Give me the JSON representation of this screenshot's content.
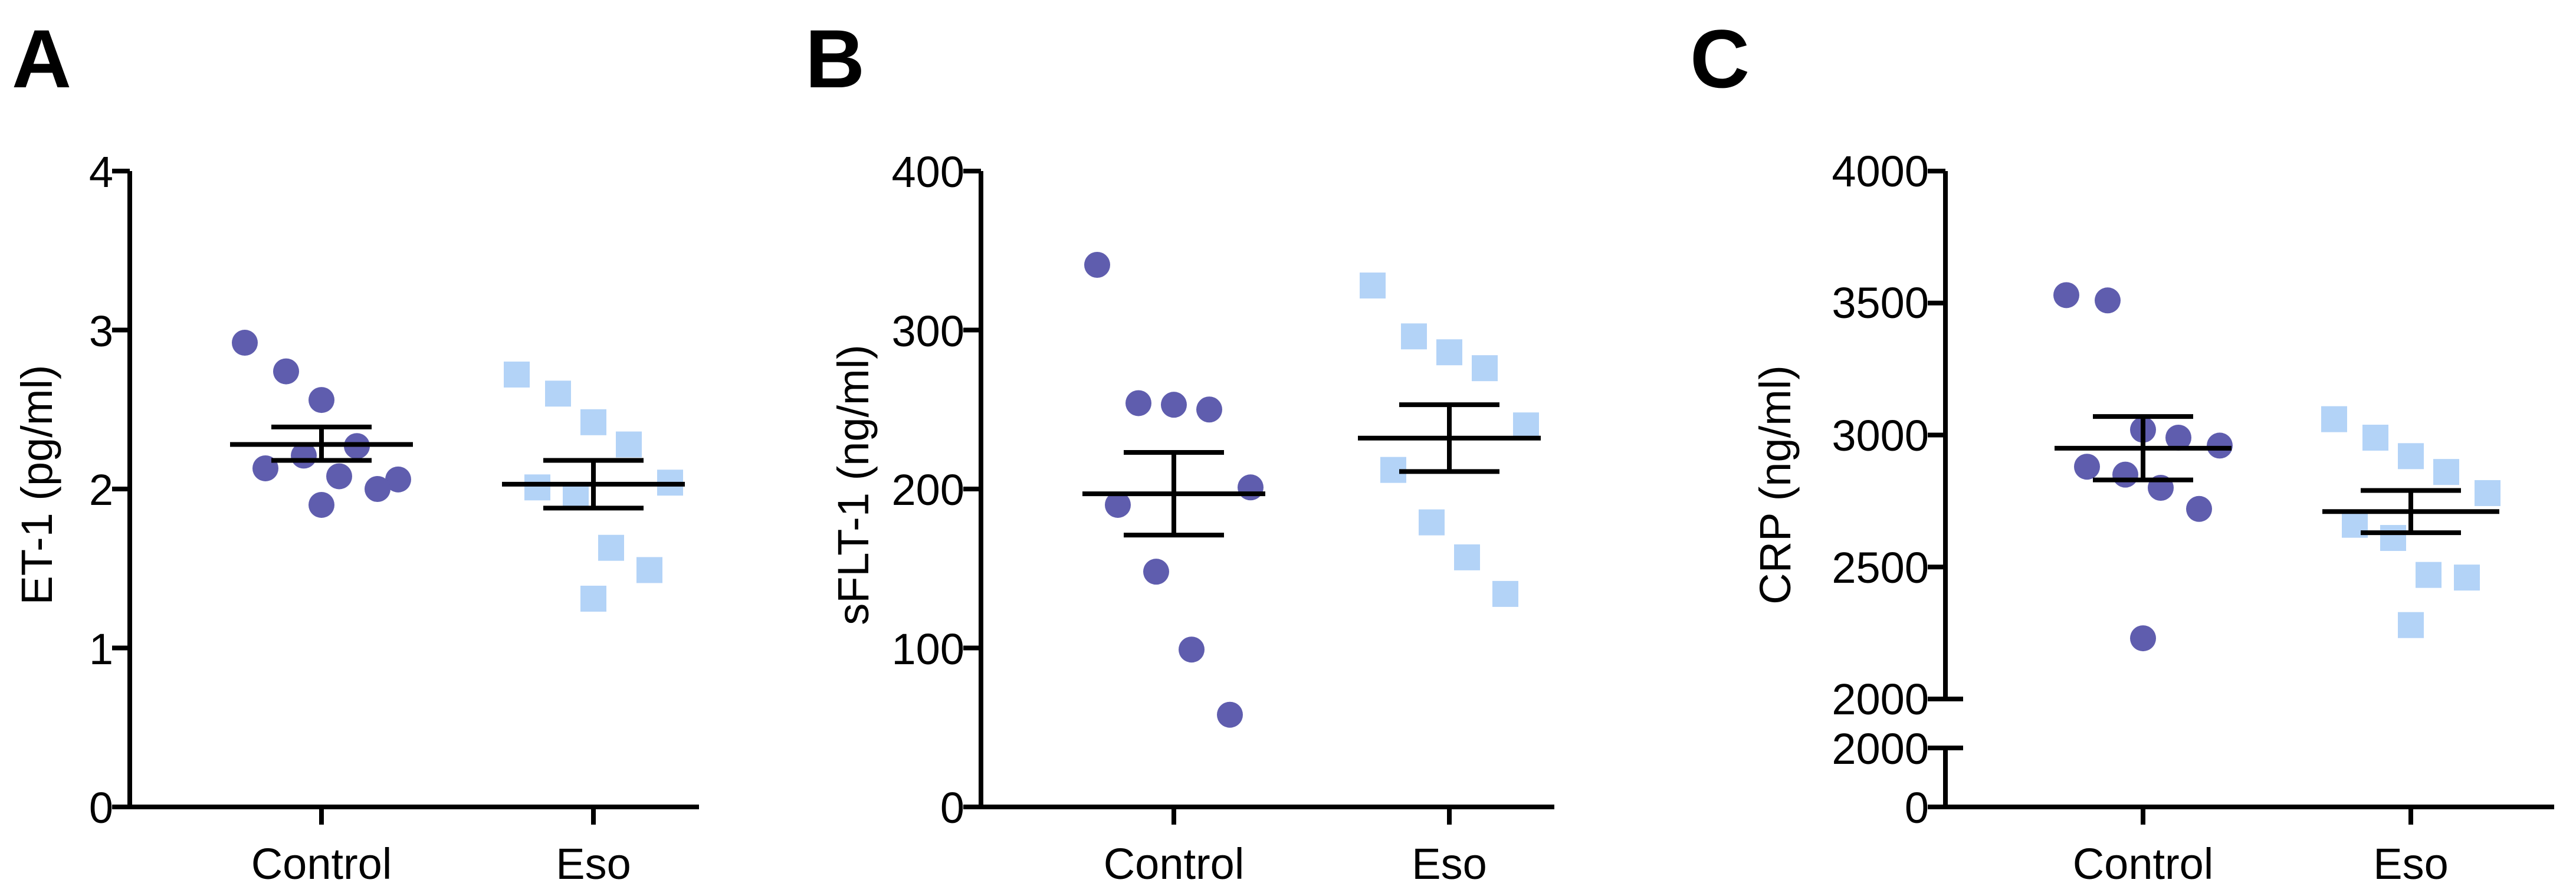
{
  "panels": [
    {
      "letter": "A"
    },
    {
      "letter": "B"
    },
    {
      "letter": "C"
    }
  ],
  "chart_data": [
    {
      "type": "scatter",
      "panel": "A",
      "ylabel": "ET-1 (pg/ml)",
      "xlabel": "",
      "categories": [
        "Control",
        "Eso"
      ],
      "ylim": [
        0,
        4
      ],
      "yticks": [
        "0",
        "1",
        "2",
        "3",
        "4"
      ],
      "series": [
        {
          "category": "Control",
          "marker": "circle",
          "color": "#5F5DAE",
          "values": [
            2.92,
            2.74,
            2.56,
            2.27,
            2.06,
            2.13,
            2.21,
            2.08,
            2.0,
            1.9
          ],
          "mean": 2.28,
          "sem": [
            2.18,
            2.39
          ]
        },
        {
          "category": "Eso",
          "marker": "square",
          "color": "#B3D3F7",
          "values": [
            2.72,
            2.6,
            2.42,
            2.28,
            2.04,
            2.01,
            1.95,
            1.63,
            1.49,
            1.31
          ],
          "mean": 2.03,
          "sem": [
            1.88,
            2.18
          ]
        }
      ]
    },
    {
      "type": "scatter",
      "panel": "B",
      "ylabel": "sFLT-1 (ng/ml)",
      "xlabel": "",
      "categories": [
        "Control",
        "Eso"
      ],
      "ylim": [
        0,
        400
      ],
      "yticks": [
        "0",
        "100",
        "200",
        "300",
        "400"
      ],
      "series": [
        {
          "category": "Control",
          "marker": "circle",
          "color": "#5F5DAE",
          "values": [
            341,
            254,
            253,
            250,
            201,
            190,
            148,
            99,
            58
          ],
          "mean": 197,
          "sem": [
            171,
            223
          ]
        },
        {
          "category": "Eso",
          "marker": "square",
          "color": "#B3D3F7",
          "values": [
            328,
            296,
            286,
            276,
            240,
            212,
            179,
            157,
            134
          ],
          "mean": 232,
          "sem": [
            211,
            253
          ]
        }
      ]
    },
    {
      "type": "scatter",
      "panel": "C",
      "ylabel": "CRP (ng/ml)",
      "xlabel": "",
      "categories": [
        "Control",
        "Eso"
      ],
      "ylim": [
        0,
        4000
      ],
      "axis_break": {
        "lower": [
          0,
          2000
        ],
        "upper": [
          2000,
          4000
        ]
      },
      "yticks_upper": [
        "2000",
        "2500",
        "3000",
        "3500",
        "4000"
      ],
      "yticks_lower": [
        "0",
        "2000"
      ],
      "series": [
        {
          "category": "Control",
          "marker": "circle",
          "color": "#5F5DAE",
          "values": [
            3530,
            3510,
            3020,
            2990,
            2960,
            2880,
            2850,
            2800,
            2720,
            2230
          ],
          "mean": 2950,
          "sem": [
            2830,
            3070
          ]
        },
        {
          "category": "Eso",
          "marker": "square",
          "color": "#B3D3F7",
          "values": [
            3060,
            2990,
            2920,
            2860,
            2780,
            2660,
            2610,
            2470,
            2460,
            2280
          ],
          "mean": 2710,
          "sem": [
            2630,
            2790
          ]
        }
      ]
    }
  ]
}
